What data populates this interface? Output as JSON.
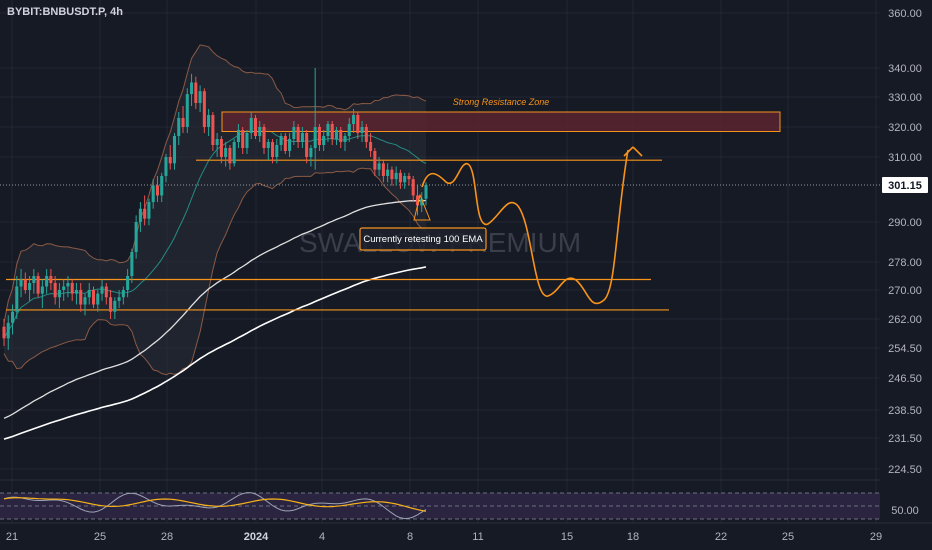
{
  "header": {
    "symbol": "BYBIT:BNBUSDT.P, 4h"
  },
  "watermark": "SWALLOW PREMIUM",
  "colors": {
    "background": "#161a25",
    "grid": "#232733",
    "up": "#26a69a",
    "down": "#ef5350",
    "level_line": "#f7931a",
    "resistance_fill": "#5a2530",
    "ema100": "#e0e0e0",
    "ema200": "#ffffff",
    "bb_band": "#8a5a45",
    "bb_fill": "#2a2d38",
    "bb_basis": "#26a69a",
    "rsi": "#9ba3b4",
    "rsi_ma": "#f7b21a"
  },
  "price_axis": {
    "ticks": [
      "360.00",
      "340.00",
      "330.00",
      "320.00",
      "310.00",
      "301.15",
      "290.00",
      "278.00",
      "270.00",
      "262.00",
      "254.50",
      "246.50",
      "238.50",
      "231.50",
      "224.50",
      "50.00"
    ],
    "current_price": "301.15"
  },
  "time_axis": {
    "ticks": [
      {
        "label": "21",
        "bold": false
      },
      {
        "label": "25",
        "bold": false
      },
      {
        "label": "28",
        "bold": false
      },
      {
        "label": "2024",
        "bold": true
      },
      {
        "label": "4",
        "bold": false
      },
      {
        "label": "8",
        "bold": false
      },
      {
        "label": "11",
        "bold": false
      },
      {
        "label": "15",
        "bold": false
      },
      {
        "label": "18",
        "bold": false
      },
      {
        "label": "22",
        "bold": false
      },
      {
        "label": "25",
        "bold": false
      },
      {
        "label": "29",
        "bold": false
      }
    ]
  },
  "annotations": {
    "resistance_label": "Strong Resistance Zone",
    "ema_note": "Currently retesting 100 EMA"
  },
  "chart_data": {
    "type": "candlestick",
    "title": "BYBIT:BNBUSDT.P, 4h",
    "xlabel": "",
    "ylabel": "",
    "ylim": [
      224.5,
      360
    ],
    "grid": true,
    "scale": "nonlinear",
    "price_ticks": [
      360,
      340,
      330,
      320,
      310,
      290,
      278,
      270,
      262,
      254.5,
      246.5,
      238.5,
      231.5,
      224.5
    ],
    "dates": [
      "Dec 21",
      "Dec 25",
      "Dec 28",
      "Jan 1 2024",
      "Jan 4",
      "Jan 8",
      "Jan 11",
      "Jan 15",
      "Jan 18",
      "Jan 22",
      "Jan 25",
      "Jan 29"
    ],
    "current_price": 301.15,
    "levels": [
      {
        "name": "resistance_zone_top",
        "value": 325
      },
      {
        "name": "resistance_zone_bottom",
        "value": 318.5
      },
      {
        "name": "resistance_line",
        "value": 309
      },
      {
        "name": "support_1",
        "value": 273
      },
      {
        "name": "support_2",
        "value": 264.5
      }
    ],
    "candles": [
      [
        260.0,
        262.0,
        255.0,
        257.0
      ],
      [
        257.0,
        263.0,
        254.0,
        261.0
      ],
      [
        261.0,
        266.0,
        258.0,
        264.0
      ],
      [
        264.0,
        274.0,
        262.0,
        271.0
      ],
      [
        271.0,
        276.0,
        268.0,
        273.0
      ],
      [
        273.0,
        275.0,
        269.0,
        270.0
      ],
      [
        270.0,
        274.0,
        267.0,
        272.0
      ],
      [
        272.0,
        276.0,
        269.0,
        274.0
      ],
      [
        274.0,
        275.0,
        268.0,
        269.0
      ],
      [
        269.0,
        273.0,
        265.0,
        271.0
      ],
      [
        271.0,
        276.0,
        269.0,
        274.0
      ],
      [
        274.0,
        276.0,
        270.0,
        272.0
      ],
      [
        272.0,
        274.0,
        266.0,
        268.0
      ],
      [
        268.0,
        272.0,
        265.0,
        270.0
      ],
      [
        270.0,
        273.0,
        267.0,
        271.0
      ],
      [
        271.0,
        274.0,
        268.0,
        272.0
      ],
      [
        272.0,
        273.0,
        267.0,
        269.0
      ],
      [
        269.0,
        272.0,
        266.0,
        270.0
      ],
      [
        270.0,
        272.0,
        264.0,
        266.0
      ],
      [
        266.0,
        269.0,
        263.0,
        268.0
      ],
      [
        268.0,
        272.0,
        266.0,
        270.0
      ],
      [
        270.0,
        271.0,
        265.0,
        266.0
      ],
      [
        266.0,
        270.0,
        264.0,
        269.0
      ],
      [
        269.0,
        273.0,
        267.0,
        271.0
      ],
      [
        271.0,
        272.0,
        266.0,
        268.0
      ],
      [
        268.0,
        270.0,
        262.0,
        264.0
      ],
      [
        264.0,
        268.0,
        262.0,
        267.0
      ],
      [
        267.0,
        270.0,
        265.0,
        268.0
      ],
      [
        268.0,
        271.0,
        266.0,
        270.0
      ],
      [
        270.0,
        276.0,
        268.0,
        274.0
      ],
      [
        274.0,
        282.0,
        272.0,
        281.0
      ],
      [
        281.0,
        292.0,
        279.0,
        290.0
      ],
      [
        290.0,
        296.0,
        287.0,
        294.0
      ],
      [
        294.0,
        298.0,
        289.0,
        291.0
      ],
      [
        291.0,
        297.0,
        289.0,
        296.0
      ],
      [
        296.0,
        303.0,
        294.0,
        301.0
      ],
      [
        301.0,
        304.0,
        296.0,
        298.0
      ],
      [
        298.0,
        305.0,
        296.0,
        304.0
      ],
      [
        304.0,
        311.0,
        302.0,
        310.0
      ],
      [
        310.0,
        314.0,
        306.0,
        308.0
      ],
      [
        308.0,
        318.0,
        306.0,
        317.0
      ],
      [
        317.0,
        325.0,
        314.0,
        323.0
      ],
      [
        323.0,
        327.0,
        318.0,
        320.0
      ],
      [
        320.0,
        333.0,
        318.0,
        331.0
      ],
      [
        331.0,
        338.0,
        327.0,
        335.0
      ],
      [
        335.0,
        337.0,
        326.0,
        328.0
      ],
      [
        328.0,
        334.0,
        325.0,
        332.0
      ],
      [
        332.0,
        333.0,
        318.0,
        320.0
      ],
      [
        320.0,
        326.0,
        317.0,
        324.0
      ],
      [
        324.0,
        325.0,
        312.0,
        314.0
      ],
      [
        314.0,
        318.0,
        310.0,
        316.0
      ],
      [
        316.0,
        317.0,
        308.0,
        310.0
      ],
      [
        310.0,
        315.0,
        307.0,
        313.0
      ],
      [
        313.0,
        314.0,
        306.0,
        308.0
      ],
      [
        308.0,
        316.0,
        307.0,
        315.0
      ],
      [
        315.0,
        321.0,
        313.0,
        319.0
      ],
      [
        319.0,
        320.0,
        311.0,
        313.0
      ],
      [
        313.0,
        319.0,
        311.0,
        318.0
      ],
      [
        318.0,
        325.0,
        316.0,
        323.0
      ],
      [
        323.0,
        324.0,
        316.0,
        317.0
      ],
      [
        317.0,
        322.0,
        315.0,
        320.0
      ],
      [
        320.0,
        321.0,
        311.0,
        313.0
      ],
      [
        313.0,
        316.0,
        309.0,
        315.0
      ],
      [
        315.0,
        316.0,
        308.0,
        310.0
      ],
      [
        310.0,
        316.0,
        308.0,
        314.0
      ],
      [
        314.0,
        318.0,
        312.0,
        317.0
      ],
      [
        317.0,
        318.0,
        311.0,
        312.0
      ],
      [
        312.0,
        318.0,
        310.0,
        316.0
      ],
      [
        316.0,
        322.0,
        314.0,
        320.0
      ],
      [
        320.0,
        321.0,
        313.0,
        315.0
      ],
      [
        315.0,
        320.0,
        313.0,
        318.0
      ],
      [
        318.0,
        319.0,
        308.0,
        310.0
      ],
      [
        310.0,
        314.0,
        307.0,
        313.0
      ],
      [
        313.0,
        340.0,
        306.0,
        320.0
      ],
      [
        320.0,
        321.0,
        312.0,
        314.0
      ],
      [
        314.0,
        319.0,
        312.0,
        317.0
      ],
      [
        317.0,
        322.0,
        315.0,
        321.0
      ],
      [
        321.0,
        322.0,
        314.0,
        316.0
      ],
      [
        316.0,
        320.0,
        314.0,
        319.0
      ],
      [
        319.0,
        320.0,
        313.0,
        315.0
      ],
      [
        315.0,
        318.0,
        312.0,
        317.0
      ],
      [
        317.0,
        323.0,
        315.0,
        321.0
      ],
      [
        321.0,
        326.0,
        318.0,
        324.0
      ],
      [
        324.0,
        325.0,
        316.0,
        318.0
      ],
      [
        318.0,
        322.0,
        315.0,
        320.0
      ],
      [
        320.0,
        321.0,
        313.0,
        315.0
      ],
      [
        315.0,
        318.0,
        310.0,
        312.0
      ],
      [
        312.0,
        313.0,
        304.0,
        306.0
      ],
      [
        306.0,
        310.0,
        304.0,
        308.0
      ],
      [
        308.0,
        309.0,
        302.0,
        304.0
      ],
      [
        304.0,
        308.0,
        302.0,
        306.0
      ],
      [
        306.0,
        307.0,
        301.0,
        303.0
      ],
      [
        303.0,
        307.0,
        301.0,
        305.0
      ],
      [
        305.0,
        306.0,
        300.0,
        302.0
      ],
      [
        302.0,
        305.0,
        300.0,
        304.0
      ],
      [
        304.0,
        305.0,
        301.0,
        303.0
      ],
      [
        303.0,
        304.0,
        296.0,
        298.0
      ],
      [
        298.0,
        301.0,
        292.0,
        295.0
      ],
      [
        295.0,
        299.0,
        293.0,
        297.0
      ],
      [
        297.0,
        302.0,
        295.0,
        301.15
      ]
    ],
    "series": [
      {
        "name": "",
        "type": "ema100"
      },
      {
        "name": "",
        "type": "ema200"
      },
      {
        "name": "",
        "type": "bollinger"
      },
      {
        "name": "",
        "type": "rsi"
      },
      {
        "name": "",
        "type": "rsi_ma"
      }
    ],
    "rsi_level": 50
  }
}
